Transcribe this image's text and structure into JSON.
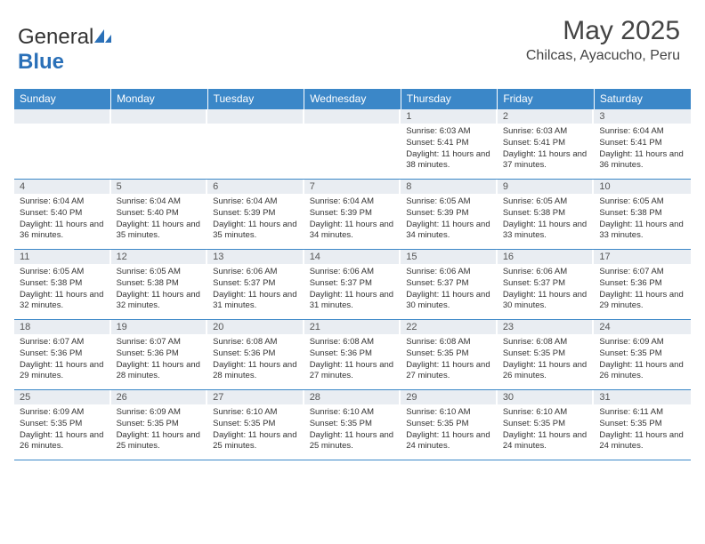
{
  "logo": {
    "word1": "General",
    "word2": "Blue"
  },
  "title": "May 2025",
  "location": "Chilcas, Ayacucho, Peru",
  "colors": {
    "header_bg": "#3b87c8",
    "header_text": "#ffffff",
    "daynum_bg": "#e9edf2",
    "border": "#3b87c8",
    "body_text": "#333333"
  },
  "day_headers": [
    "Sunday",
    "Monday",
    "Tuesday",
    "Wednesday",
    "Thursday",
    "Friday",
    "Saturday"
  ],
  "weeks": [
    [
      {
        "num": "",
        "lines": []
      },
      {
        "num": "",
        "lines": []
      },
      {
        "num": "",
        "lines": []
      },
      {
        "num": "",
        "lines": []
      },
      {
        "num": "1",
        "lines": [
          "Sunrise: 6:03 AM",
          "Sunset: 5:41 PM",
          "Daylight: 11 hours and 38 minutes."
        ]
      },
      {
        "num": "2",
        "lines": [
          "Sunrise: 6:03 AM",
          "Sunset: 5:41 PM",
          "Daylight: 11 hours and 37 minutes."
        ]
      },
      {
        "num": "3",
        "lines": [
          "Sunrise: 6:04 AM",
          "Sunset: 5:41 PM",
          "Daylight: 11 hours and 36 minutes."
        ]
      }
    ],
    [
      {
        "num": "4",
        "lines": [
          "Sunrise: 6:04 AM",
          "Sunset: 5:40 PM",
          "Daylight: 11 hours and 36 minutes."
        ]
      },
      {
        "num": "5",
        "lines": [
          "Sunrise: 6:04 AM",
          "Sunset: 5:40 PM",
          "Daylight: 11 hours and 35 minutes."
        ]
      },
      {
        "num": "6",
        "lines": [
          "Sunrise: 6:04 AM",
          "Sunset: 5:39 PM",
          "Daylight: 11 hours and 35 minutes."
        ]
      },
      {
        "num": "7",
        "lines": [
          "Sunrise: 6:04 AM",
          "Sunset: 5:39 PM",
          "Daylight: 11 hours and 34 minutes."
        ]
      },
      {
        "num": "8",
        "lines": [
          "Sunrise: 6:05 AM",
          "Sunset: 5:39 PM",
          "Daylight: 11 hours and 34 minutes."
        ]
      },
      {
        "num": "9",
        "lines": [
          "Sunrise: 6:05 AM",
          "Sunset: 5:38 PM",
          "Daylight: 11 hours and 33 minutes."
        ]
      },
      {
        "num": "10",
        "lines": [
          "Sunrise: 6:05 AM",
          "Sunset: 5:38 PM",
          "Daylight: 11 hours and 33 minutes."
        ]
      }
    ],
    [
      {
        "num": "11",
        "lines": [
          "Sunrise: 6:05 AM",
          "Sunset: 5:38 PM",
          "Daylight: 11 hours and 32 minutes."
        ]
      },
      {
        "num": "12",
        "lines": [
          "Sunrise: 6:05 AM",
          "Sunset: 5:38 PM",
          "Daylight: 11 hours and 32 minutes."
        ]
      },
      {
        "num": "13",
        "lines": [
          "Sunrise: 6:06 AM",
          "Sunset: 5:37 PM",
          "Daylight: 11 hours and 31 minutes."
        ]
      },
      {
        "num": "14",
        "lines": [
          "Sunrise: 6:06 AM",
          "Sunset: 5:37 PM",
          "Daylight: 11 hours and 31 minutes."
        ]
      },
      {
        "num": "15",
        "lines": [
          "Sunrise: 6:06 AM",
          "Sunset: 5:37 PM",
          "Daylight: 11 hours and 30 minutes."
        ]
      },
      {
        "num": "16",
        "lines": [
          "Sunrise: 6:06 AM",
          "Sunset: 5:37 PM",
          "Daylight: 11 hours and 30 minutes."
        ]
      },
      {
        "num": "17",
        "lines": [
          "Sunrise: 6:07 AM",
          "Sunset: 5:36 PM",
          "Daylight: 11 hours and 29 minutes."
        ]
      }
    ],
    [
      {
        "num": "18",
        "lines": [
          "Sunrise: 6:07 AM",
          "Sunset: 5:36 PM",
          "Daylight: 11 hours and 29 minutes."
        ]
      },
      {
        "num": "19",
        "lines": [
          "Sunrise: 6:07 AM",
          "Sunset: 5:36 PM",
          "Daylight: 11 hours and 28 minutes."
        ]
      },
      {
        "num": "20",
        "lines": [
          "Sunrise: 6:08 AM",
          "Sunset: 5:36 PM",
          "Daylight: 11 hours and 28 minutes."
        ]
      },
      {
        "num": "21",
        "lines": [
          "Sunrise: 6:08 AM",
          "Sunset: 5:36 PM",
          "Daylight: 11 hours and 27 minutes."
        ]
      },
      {
        "num": "22",
        "lines": [
          "Sunrise: 6:08 AM",
          "Sunset: 5:35 PM",
          "Daylight: 11 hours and 27 minutes."
        ]
      },
      {
        "num": "23",
        "lines": [
          "Sunrise: 6:08 AM",
          "Sunset: 5:35 PM",
          "Daylight: 11 hours and 26 minutes."
        ]
      },
      {
        "num": "24",
        "lines": [
          "Sunrise: 6:09 AM",
          "Sunset: 5:35 PM",
          "Daylight: 11 hours and 26 minutes."
        ]
      }
    ],
    [
      {
        "num": "25",
        "lines": [
          "Sunrise: 6:09 AM",
          "Sunset: 5:35 PM",
          "Daylight: 11 hours and 26 minutes."
        ]
      },
      {
        "num": "26",
        "lines": [
          "Sunrise: 6:09 AM",
          "Sunset: 5:35 PM",
          "Daylight: 11 hours and 25 minutes."
        ]
      },
      {
        "num": "27",
        "lines": [
          "Sunrise: 6:10 AM",
          "Sunset: 5:35 PM",
          "Daylight: 11 hours and 25 minutes."
        ]
      },
      {
        "num": "28",
        "lines": [
          "Sunrise: 6:10 AM",
          "Sunset: 5:35 PM",
          "Daylight: 11 hours and 25 minutes."
        ]
      },
      {
        "num": "29",
        "lines": [
          "Sunrise: 6:10 AM",
          "Sunset: 5:35 PM",
          "Daylight: 11 hours and 24 minutes."
        ]
      },
      {
        "num": "30",
        "lines": [
          "Sunrise: 6:10 AM",
          "Sunset: 5:35 PM",
          "Daylight: 11 hours and 24 minutes."
        ]
      },
      {
        "num": "31",
        "lines": [
          "Sunrise: 6:11 AM",
          "Sunset: 5:35 PM",
          "Daylight: 11 hours and 24 minutes."
        ]
      }
    ]
  ]
}
